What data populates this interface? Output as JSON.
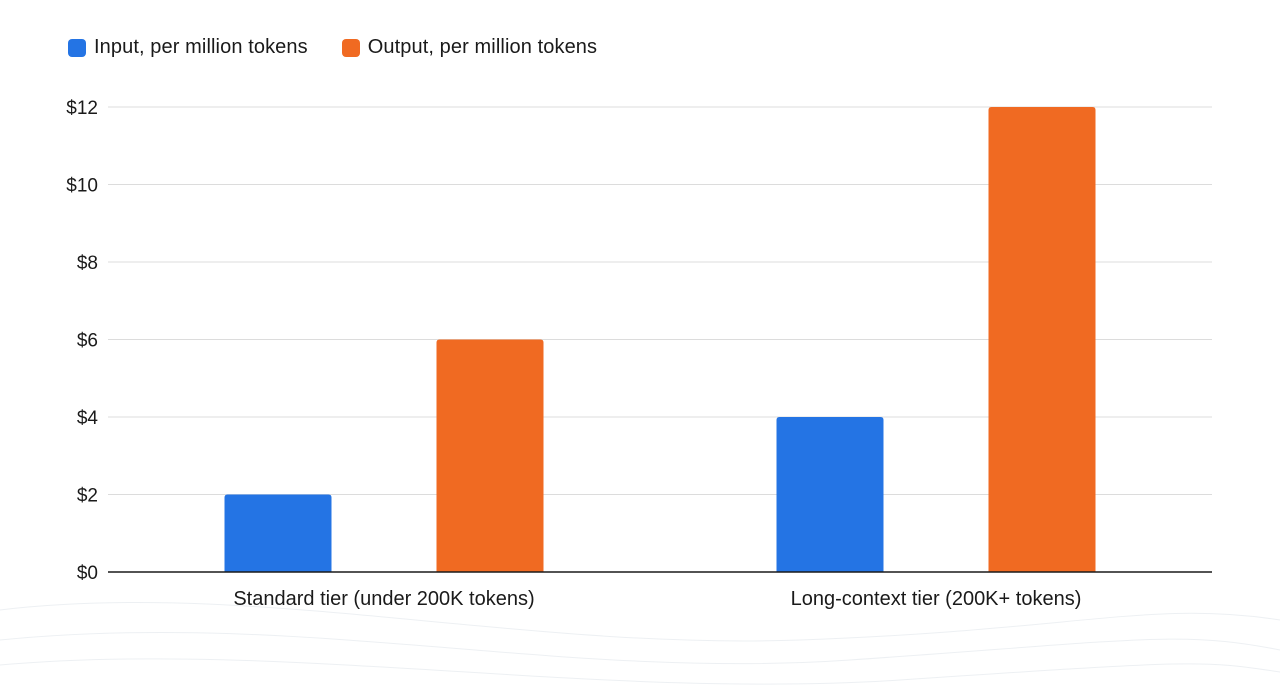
{
  "chart_data": {
    "type": "bar",
    "categories": [
      "Standard tier (under 200K tokens)",
      "Long-context tier (200K+ tokens)"
    ],
    "series": [
      {
        "name": "Input, per million tokens",
        "values": [
          2,
          4
        ],
        "color": "#2474e4"
      },
      {
        "name": "Output, per million tokens",
        "values": [
          6,
          12
        ],
        "color": "#f06a22"
      }
    ],
    "ylim": [
      0,
      12
    ],
    "yticks": [
      0,
      2,
      4,
      6,
      8,
      10,
      12
    ],
    "ytick_labels": [
      "$0",
      "$2",
      "$4",
      "$6",
      "$8",
      "$10",
      "$12"
    ],
    "grid": true,
    "legend_position": "top-left",
    "title": "",
    "xlabel": "",
    "ylabel": ""
  }
}
